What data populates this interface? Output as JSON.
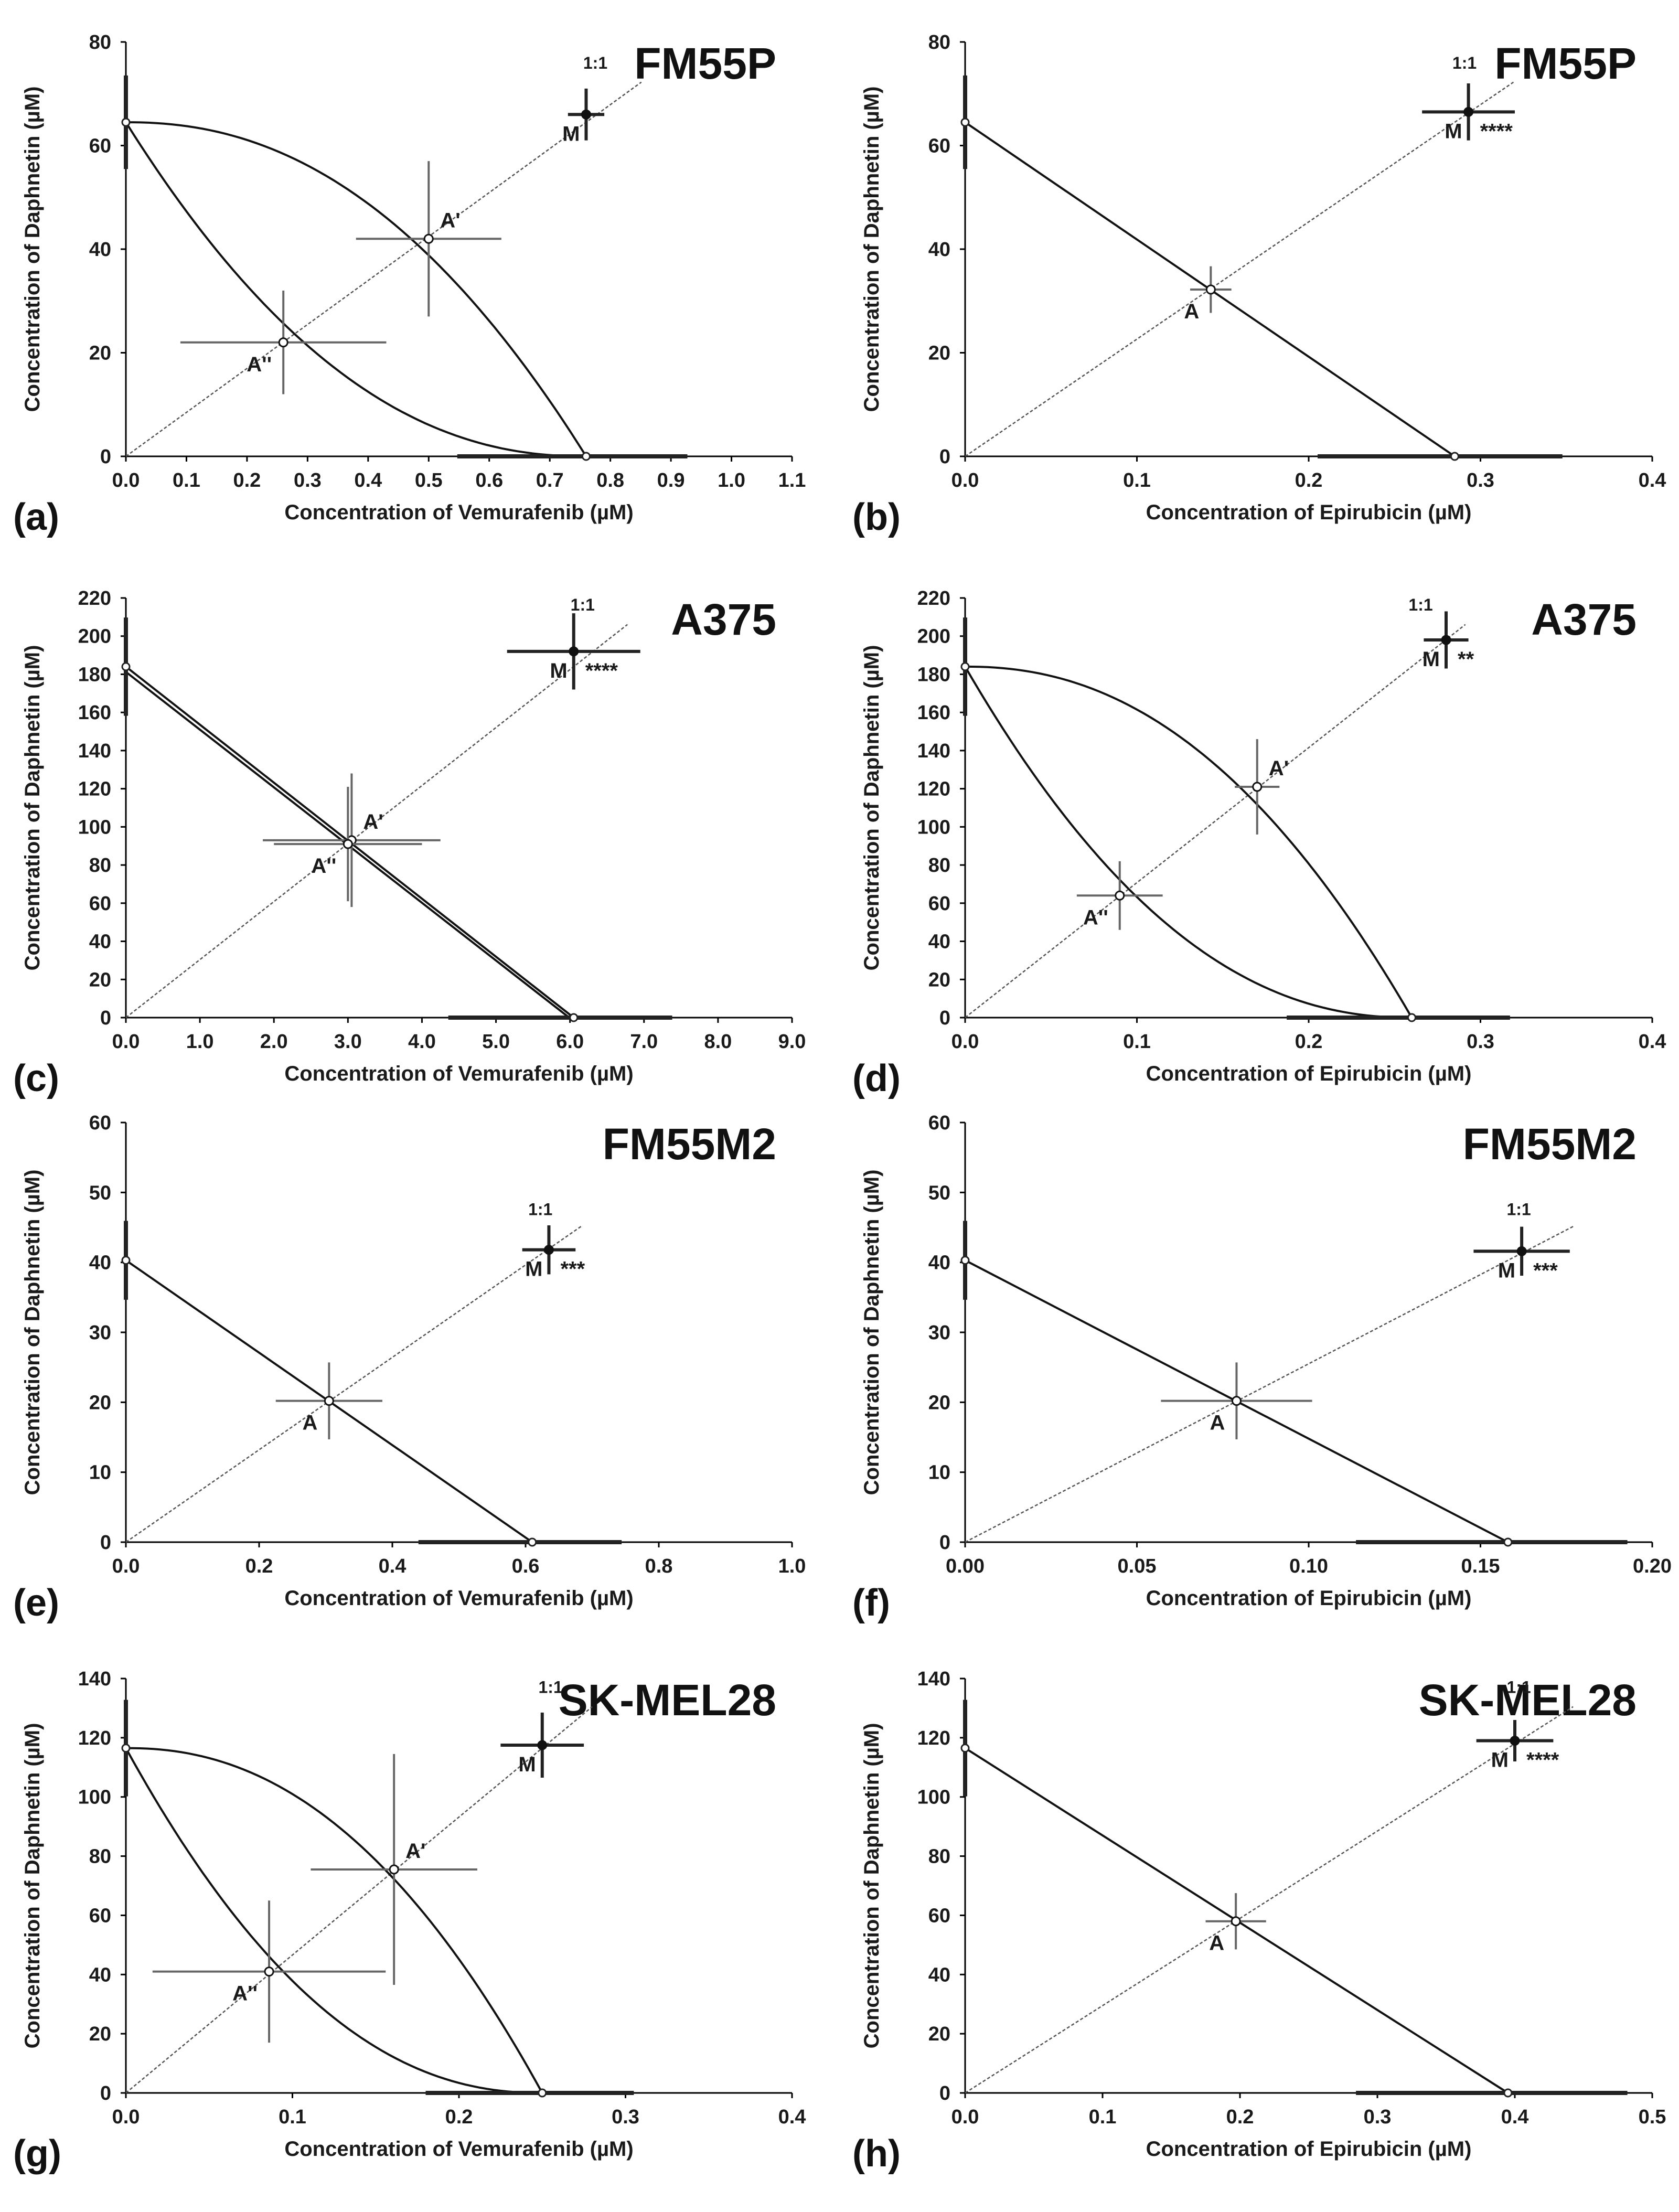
{
  "chart_data": [
    {
      "type": "scatter",
      "panel_label": "(a)",
      "cell_line": "FM55P",
      "ratio_label": "1:1",
      "xlabel": "Concentration of Vemurafenib (µM)",
      "ylabel": "Concentration of Daphnetin (µM)",
      "xlim": [
        0,
        1.1
      ],
      "ylim": [
        0,
        80
      ],
      "xticks": [
        "0.0",
        "0.1",
        "0.2",
        "0.3",
        "0.4",
        "0.5",
        "0.6",
        "0.7",
        "0.8",
        "0.9",
        "1.0",
        "1.1"
      ],
      "yticks": [
        "0",
        "20",
        "40",
        "60",
        "80"
      ],
      "isobole": "curved",
      "drug_a_ic50": 0.76,
      "drug_b_ic50": 64.5,
      "points": [
        {
          "label": "A'",
          "x": 0.5,
          "y": 42,
          "sem_x": 0.12,
          "sem_y": 15
        },
        {
          "label": "A''",
          "x": 0.26,
          "y": 22,
          "sem_x": 0.17,
          "sem_y": 10
        },
        {
          "label": "M",
          "x": 0.76,
          "y": 66,
          "sem_x": 0.03,
          "sem_y": 5,
          "significance": ""
        }
      ]
    },
    {
      "type": "scatter",
      "panel_label": "(b)",
      "cell_line": "FM55P",
      "ratio_label": "1:1",
      "xlabel": "Concentration of Epirubicin (µM)",
      "ylabel": "Concentration of Daphnetin (µM)",
      "xlim": [
        0,
        0.4
      ],
      "ylim": [
        0,
        80
      ],
      "xticks": [
        "0.0",
        "0.1",
        "0.2",
        "0.3",
        "0.4"
      ],
      "yticks": [
        "0",
        "20",
        "40",
        "60",
        "80"
      ],
      "isobole": "straight",
      "drug_a_ic50": 0.285,
      "drug_b_ic50": 64.5,
      "points": [
        {
          "label": "A",
          "x": 0.143,
          "y": 32.2,
          "sem_x": 0.012,
          "sem_y": 4.5
        },
        {
          "label": "M",
          "x": 0.293,
          "y": 66.5,
          "sem_x": 0.027,
          "sem_y": 5.5,
          "significance": "****"
        }
      ]
    },
    {
      "type": "scatter",
      "panel_label": "(c)",
      "cell_line": "A375",
      "ratio_label": "1:1",
      "xlabel": "Concentration of Vemurafenib (µM)",
      "ylabel": "Concentration of Daphnetin (µM)",
      "xlim": [
        0,
        9
      ],
      "ylim": [
        0,
        220
      ],
      "xticks": [
        "0.0",
        "1.0",
        "2.0",
        "3.0",
        "4.0",
        "5.0",
        "6.0",
        "7.0",
        "8.0",
        "9.0"
      ],
      "yticks": [
        "0",
        "20",
        "40",
        "60",
        "80",
        "100",
        "120",
        "140",
        "160",
        "180",
        "200",
        "220"
      ],
      "isobole": "double-straight",
      "drug_a_ic50": 6.05,
      "drug_b_ic50": 184,
      "points": [
        {
          "label": "A'",
          "x": 3.05,
          "y": 93,
          "sem_x": 1.2,
          "sem_y": 35
        },
        {
          "label": "A''",
          "x": 3.0,
          "y": 91,
          "sem_x": 1.0,
          "sem_y": 30
        },
        {
          "label": "M",
          "x": 6.05,
          "y": 192,
          "sem_x": 0.9,
          "sem_y": 20,
          "significance": "****"
        }
      ]
    },
    {
      "type": "scatter",
      "panel_label": "(d)",
      "cell_line": "A375",
      "ratio_label": "1:1",
      "xlabel": "Concentration of Epirubicin (µM)",
      "ylabel": "Concentration of Daphnetin (µM)",
      "xlim": [
        0,
        0.4
      ],
      "ylim": [
        0,
        220
      ],
      "xticks": [
        "0.0",
        "0.1",
        "0.2",
        "0.3",
        "0.4"
      ],
      "yticks": [
        "0",
        "20",
        "40",
        "60",
        "80",
        "100",
        "120",
        "140",
        "160",
        "180",
        "200",
        "220"
      ],
      "isobole": "curved",
      "drug_a_ic50": 0.26,
      "drug_b_ic50": 184,
      "points": [
        {
          "label": "A'",
          "x": 0.17,
          "y": 121,
          "sem_x": 0.013,
          "sem_y": 25
        },
        {
          "label": "A''",
          "x": 0.09,
          "y": 64,
          "sem_x": 0.025,
          "sem_y": 18
        },
        {
          "label": "M",
          "x": 0.28,
          "y": 198,
          "sem_x": 0.013,
          "sem_y": 15,
          "significance": "**"
        }
      ]
    },
    {
      "type": "scatter",
      "panel_label": "(e)",
      "cell_line": "FM55M2",
      "ratio_label": "1:1",
      "xlabel": "Concentration of Vemurafenib (µM)",
      "ylabel": "Concentration of Daphnetin (µM)",
      "xlim": [
        0,
        1.0
      ],
      "ylim": [
        0,
        60
      ],
      "xticks": [
        "0.0",
        "0.2",
        "0.4",
        "0.6",
        "0.8",
        "1.0"
      ],
      "yticks": [
        "0",
        "10",
        "20",
        "30",
        "40",
        "50",
        "60"
      ],
      "isobole": "straight",
      "drug_a_ic50": 0.61,
      "drug_b_ic50": 40.3,
      "points": [
        {
          "label": "A",
          "x": 0.305,
          "y": 20.2,
          "sem_x": 0.08,
          "sem_y": 5.5
        },
        {
          "label": "M",
          "x": 0.635,
          "y": 41.8,
          "sem_x": 0.04,
          "sem_y": 3.5,
          "significance": "***"
        }
      ]
    },
    {
      "type": "scatter",
      "panel_label": "(f)",
      "cell_line": "FM55M2",
      "ratio_label": "1:1",
      "xlabel": "Concentration of Epirubicin (µM)",
      "ylabel": "Concentration of Daphnetin (µM)",
      "xlim": [
        0,
        0.2
      ],
      "ylim": [
        0,
        60
      ],
      "xticks": [
        "0.00",
        "0.05",
        "0.10",
        "0.15",
        "0.20"
      ],
      "yticks": [
        "0",
        "10",
        "20",
        "30",
        "40",
        "50",
        "60"
      ],
      "isobole": "straight",
      "drug_a_ic50": 0.158,
      "drug_b_ic50": 40.3,
      "points": [
        {
          "label": "A",
          "x": 0.079,
          "y": 20.2,
          "sem_x": 0.022,
          "sem_y": 5.5
        },
        {
          "label": "M",
          "x": 0.162,
          "y": 41.6,
          "sem_x": 0.014,
          "sem_y": 3.5,
          "significance": "***"
        }
      ]
    },
    {
      "type": "scatter",
      "panel_label": "(g)",
      "cell_line": "SK-MEL28",
      "ratio_label": "1:1",
      "xlabel": "Concentration of Vemurafenib (µM)",
      "ylabel": "Concentration of Daphnetin (µM)",
      "xlim": [
        0,
        0.4
      ],
      "ylim": [
        0,
        140
      ],
      "xticks": [
        "0.0",
        "0.1",
        "0.2",
        "0.3",
        "0.4"
      ],
      "yticks": [
        "0",
        "20",
        "40",
        "60",
        "80",
        "100",
        "120",
        "140"
      ],
      "isobole": "curved",
      "drug_a_ic50": 0.25,
      "drug_b_ic50": 116.5,
      "points": [
        {
          "label": "A'",
          "x": 0.161,
          "y": 75.5,
          "sem_x": 0.05,
          "sem_y": 39
        },
        {
          "label": "A''",
          "x": 0.086,
          "y": 41,
          "sem_x": 0.07,
          "sem_y": 24
        },
        {
          "label": "M",
          "x": 0.25,
          "y": 117.5,
          "sem_x": 0.025,
          "sem_y": 11,
          "significance": ""
        }
      ]
    },
    {
      "type": "scatter",
      "panel_label": "(h)",
      "cell_line": "SK-MEL28",
      "ratio_label": "1:1",
      "xlabel": "Concentration of Epirubicin (µM)",
      "ylabel": "Concentration of Daphnetin (µM)",
      "xlim": [
        0,
        0.5
      ],
      "ylim": [
        0,
        140
      ],
      "xticks": [
        "0.0",
        "0.1",
        "0.2",
        "0.3",
        "0.4",
        "0.5"
      ],
      "yticks": [
        "0",
        "20",
        "40",
        "60",
        "80",
        "100",
        "120",
        "140"
      ],
      "isobole": "straight",
      "drug_a_ic50": 0.395,
      "drug_b_ic50": 116.5,
      "points": [
        {
          "label": "A",
          "x": 0.197,
          "y": 58,
          "sem_x": 0.022,
          "sem_y": 9.5
        },
        {
          "label": "M",
          "x": 0.4,
          "y": 119,
          "sem_x": 0.028,
          "sem_y": 7,
          "significance": "****"
        }
      ]
    }
  ]
}
